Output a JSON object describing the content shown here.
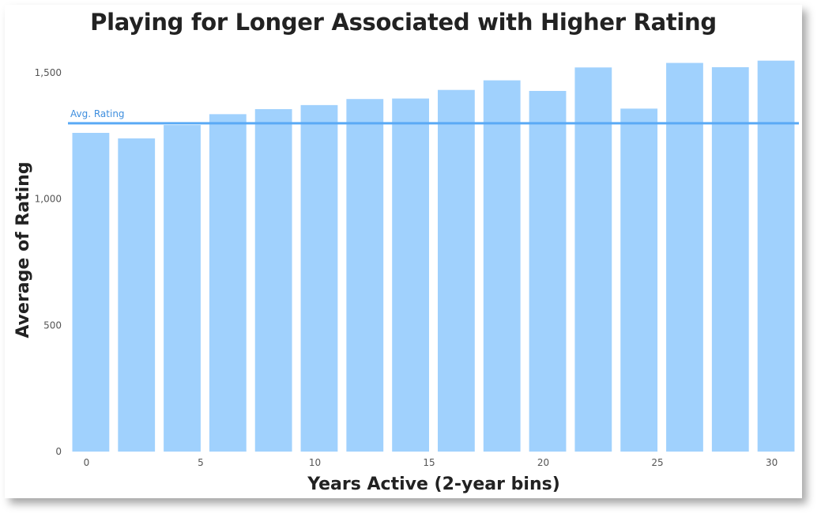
{
  "chart_data": {
    "type": "bar",
    "title": "Playing for Longer Associated with Higher Rating",
    "xlabel": "Years Active (2-year bins)",
    "ylabel": "Average of Rating",
    "x": [
      0,
      2,
      4,
      6,
      8,
      10,
      12,
      14,
      16,
      18,
      20,
      22,
      24,
      26,
      28,
      30
    ],
    "values": [
      1262,
      1240,
      1293,
      1336,
      1356,
      1372,
      1396,
      1398,
      1432,
      1470,
      1428,
      1521,
      1358,
      1539,
      1522,
      1548
    ],
    "ylim": [
      0,
      1500
    ],
    "yticks": [
      {
        "value": 0,
        "label": "0"
      },
      {
        "value": 500,
        "label": "500"
      },
      {
        "value": 1000,
        "label": "1,000"
      },
      {
        "value": 1500,
        "label": "1,500"
      }
    ],
    "xticks": [
      {
        "value": 0,
        "label": "0"
      },
      {
        "value": 5,
        "label": "5"
      },
      {
        "value": 10,
        "label": "10"
      },
      {
        "value": 15,
        "label": "15"
      },
      {
        "value": 20,
        "label": "20"
      },
      {
        "value": 25,
        "label": "25"
      },
      {
        "value": 30,
        "label": "30"
      }
    ],
    "reference_line": {
      "label": "Avg. Rating",
      "value": 1300
    },
    "grid": false,
    "legend": "none",
    "colors": {
      "bar": "#a0d1fd",
      "reference_line": "#5aaaf5",
      "reference_label": "#3e8ede"
    }
  }
}
